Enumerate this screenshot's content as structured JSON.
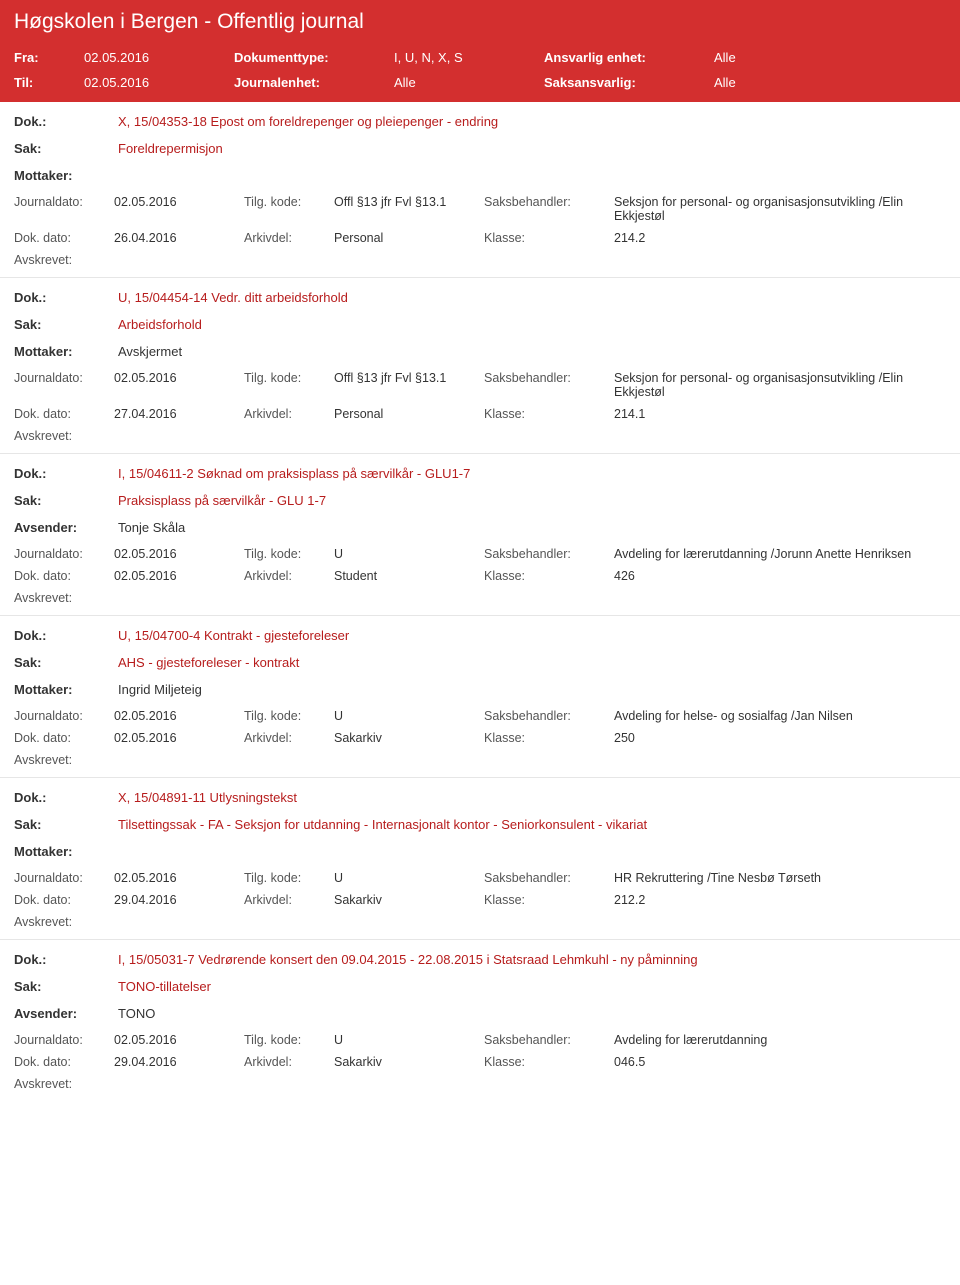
{
  "header": {
    "title": "Høgskolen i Bergen - Offentlig journal"
  },
  "filter": {
    "fra_label": "Fra:",
    "fra_value": "02.05.2016",
    "til_label": "Til:",
    "til_value": "02.05.2016",
    "doktype_label": "Dokumenttype:",
    "doktype_value": "I, U, N, X, S",
    "journalenhet_label": "Journalenhet:",
    "journalenhet_value": "Alle",
    "ansvarlig_label": "Ansvarlig enhet:",
    "ansvarlig_value": "Alle",
    "saksansvarlig_label": "Saksansvarlig:",
    "saksansvarlig_value": "Alle"
  },
  "labels": {
    "dok": "Dok.:",
    "sak": "Sak:",
    "mottaker": "Mottaker:",
    "avsender": "Avsender:",
    "journaldato": "Journaldato:",
    "tilgkode": "Tilg. kode:",
    "saksbehandler": "Saksbehandler:",
    "dokdato": "Dok. dato:",
    "arkivdel": "Arkivdel:",
    "klasse": "Klasse:",
    "avskrevet": "Avskrevet:"
  },
  "entries": [
    {
      "dok": "X, 15/04353-18 Epost om foreldrepenger og pleiepenger - endring",
      "sak": "Foreldrepermisjon",
      "party_label": "Mottaker:",
      "party_value": "",
      "journaldato": "02.05.2016",
      "tilgkode": "Offl §13 jfr Fvl §13.1",
      "saksbehandler": "Seksjon for personal- og organisasjonsutvikling /Elin Ekkjestøl",
      "dokdato": "26.04.2016",
      "arkivdel": "Personal",
      "klasse": "214.2"
    },
    {
      "dok": "U, 15/04454-14 Vedr. ditt arbeidsforhold",
      "sak": "Arbeidsforhold",
      "party_label": "Mottaker:",
      "party_value": "Avskjermet",
      "journaldato": "02.05.2016",
      "tilgkode": "Offl §13 jfr Fvl §13.1",
      "saksbehandler": "Seksjon for personal- og organisasjonsutvikling /Elin Ekkjestøl",
      "dokdato": "27.04.2016",
      "arkivdel": "Personal",
      "klasse": "214.1"
    },
    {
      "dok": "I, 15/04611-2 Søknad om praksisplass på særvilkår - GLU1-7",
      "sak": "Praksisplass på særvilkår - GLU 1-7",
      "party_label": "Avsender:",
      "party_value": "Tonje Skåla",
      "journaldato": "02.05.2016",
      "tilgkode": "U",
      "saksbehandler": "Avdeling for lærerutdanning /Jorunn Anette Henriksen",
      "dokdato": "02.05.2016",
      "arkivdel": "Student",
      "klasse": "426"
    },
    {
      "dok": "U, 15/04700-4 Kontrakt - gjesteforeleser",
      "sak": "AHS - gjesteforeleser - kontrakt",
      "party_label": "Mottaker:",
      "party_value": "Ingrid Miljeteig",
      "journaldato": "02.05.2016",
      "tilgkode": "U",
      "saksbehandler": "Avdeling for helse- og sosialfag /Jan Nilsen",
      "dokdato": "02.05.2016",
      "arkivdel": "Sakarkiv",
      "klasse": "250"
    },
    {
      "dok": "X, 15/04891-11 Utlysningstekst",
      "sak": "Tilsettingssak - FA - Seksjon for utdanning - Internasjonalt kontor - Seniorkonsulent - vikariat",
      "party_label": "Mottaker:",
      "party_value": "",
      "journaldato": "02.05.2016",
      "tilgkode": "U",
      "saksbehandler": "HR Rekruttering /Tine Nesbø Tørseth",
      "dokdato": "29.04.2016",
      "arkivdel": "Sakarkiv",
      "klasse": "212.2"
    },
    {
      "dok": "I, 15/05031-7 Vedrørende konsert den 09.04.2015 - 22.08.2015 i Statsraad Lehmkuhl - ny påminning",
      "sak": "TONO-tillatelser",
      "party_label": "Avsender:",
      "party_value": "TONO",
      "journaldato": "02.05.2016",
      "tilgkode": "U",
      "saksbehandler": "Avdeling for lærerutdanning",
      "dokdato": "29.04.2016",
      "arkivdel": "Sakarkiv",
      "klasse": "046.5"
    }
  ]
}
